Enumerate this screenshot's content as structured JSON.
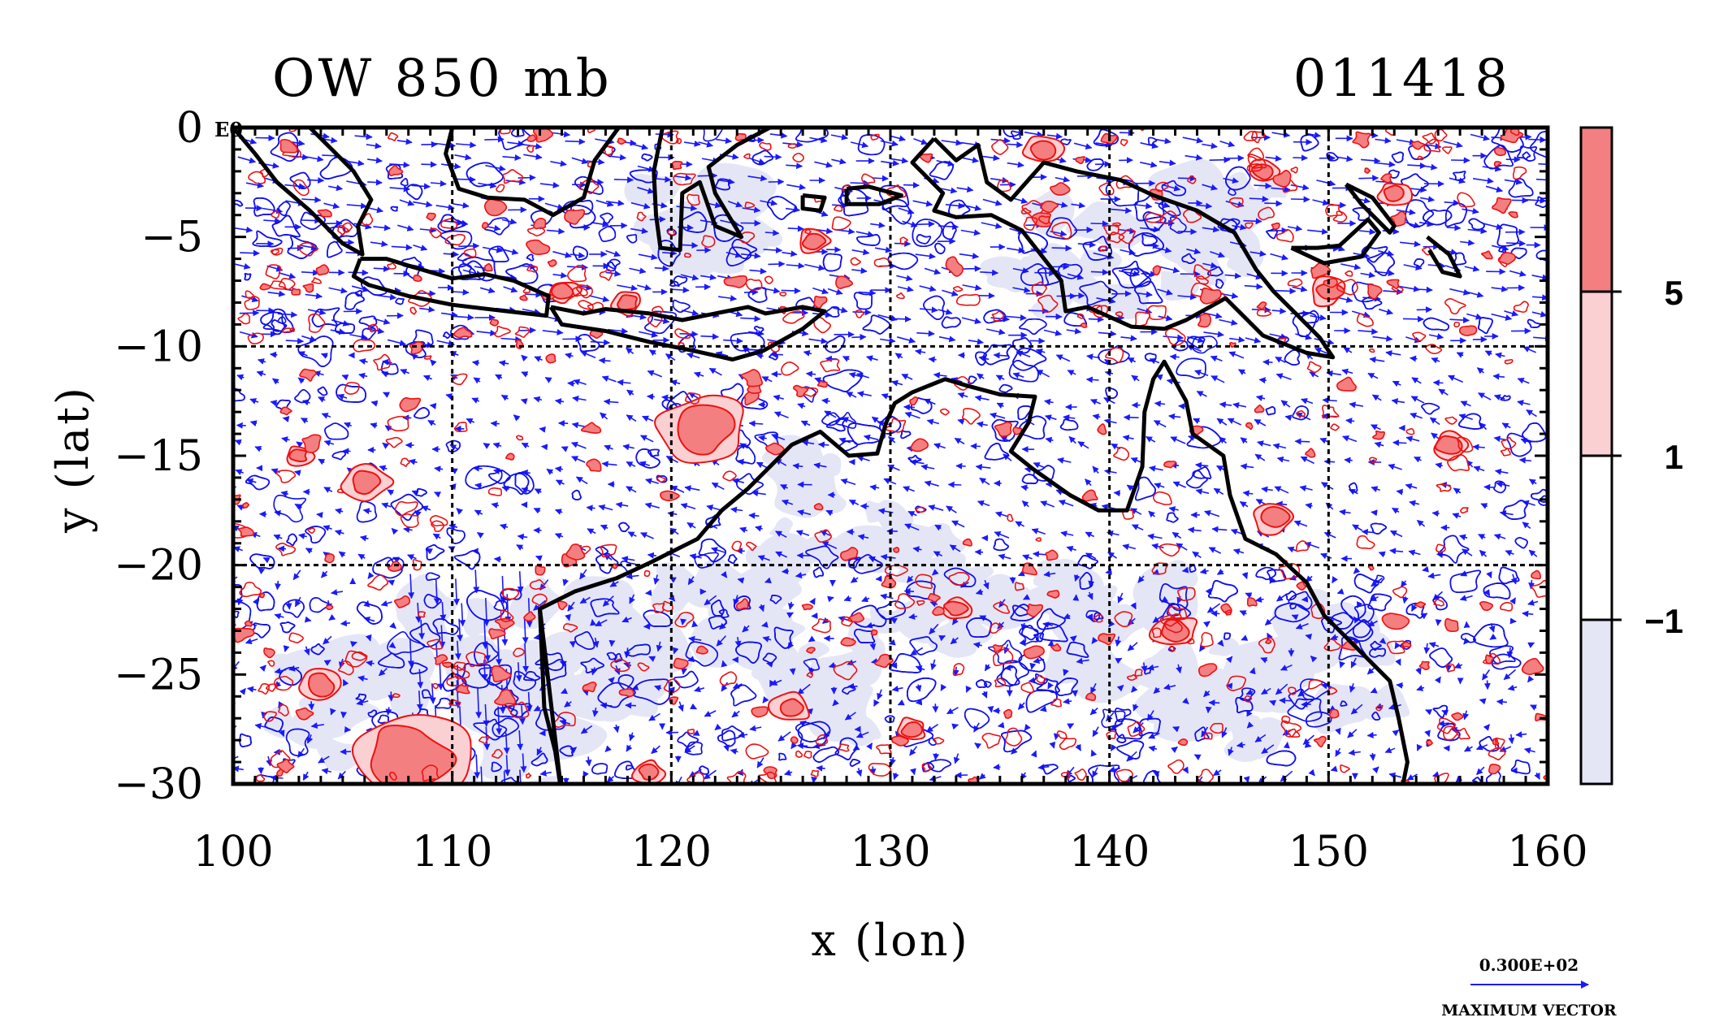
{
  "header": {
    "title": "OW 850 mb",
    "timestamp": "011418"
  },
  "chart_data": {
    "type": "heatmap",
    "xlabel": "x (lon)",
    "ylabel": "y (lat)",
    "xlim": [
      100,
      160
    ],
    "ylim": [
      -30,
      0
    ],
    "x_ticks": [
      "100",
      "110",
      "120",
      "130",
      "140",
      "150",
      "160"
    ],
    "y_ticks": [
      "0",
      "−5",
      "−10",
      "−15",
      "−20",
      "−25",
      "−30"
    ],
    "corner_label": "E0",
    "gridlines_lon": [
      110,
      120,
      130,
      140,
      150
    ],
    "gridlines_lat": [
      -10,
      -20
    ],
    "grid": "dashed",
    "colorbar": {
      "labels": [
        "5",
        "1",
        "−1"
      ],
      "levels": [
        -1,
        1,
        5
      ],
      "colors": [
        "#e4e6f6",
        "#ffffff",
        "#fbd0d2",
        "#f47f80"
      ]
    },
    "colors": {
      "negative_contour": "#1010ee",
      "positive_contour": "#ee1111",
      "vectors": "#1a1aff",
      "coastline": "#000000"
    },
    "reference_vector": {
      "value": "0.300E+02",
      "label": "MAXIMUM VECTOR"
    }
  }
}
